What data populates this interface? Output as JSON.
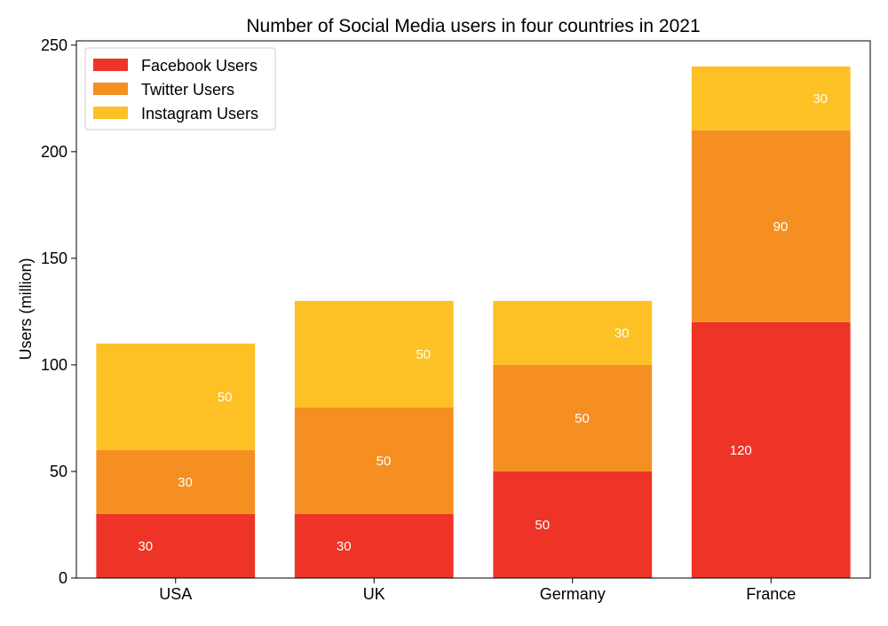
{
  "chart_data": {
    "type": "bar",
    "stacked": true,
    "title": "Number of Social Media users in four countries in 2021",
    "xlabel": "",
    "ylabel": "Users (million)",
    "categories": [
      "USA",
      "UK",
      "Germany",
      "France"
    ],
    "ylim": [
      0,
      252
    ],
    "yticks": [
      0,
      50,
      100,
      150,
      200,
      250
    ],
    "grid": false,
    "legend_position": "top-left",
    "series": [
      {
        "name": "Facebook Users",
        "color": "#ee3426",
        "values": [
          30,
          30,
          50,
          120
        ]
      },
      {
        "name": "Twitter Users",
        "color": "#f58f22",
        "values": [
          30,
          50,
          50,
          90
        ]
      },
      {
        "name": "Instagram Users",
        "color": "#fdc125",
        "values": [
          50,
          50,
          30,
          30
        ]
      }
    ]
  }
}
